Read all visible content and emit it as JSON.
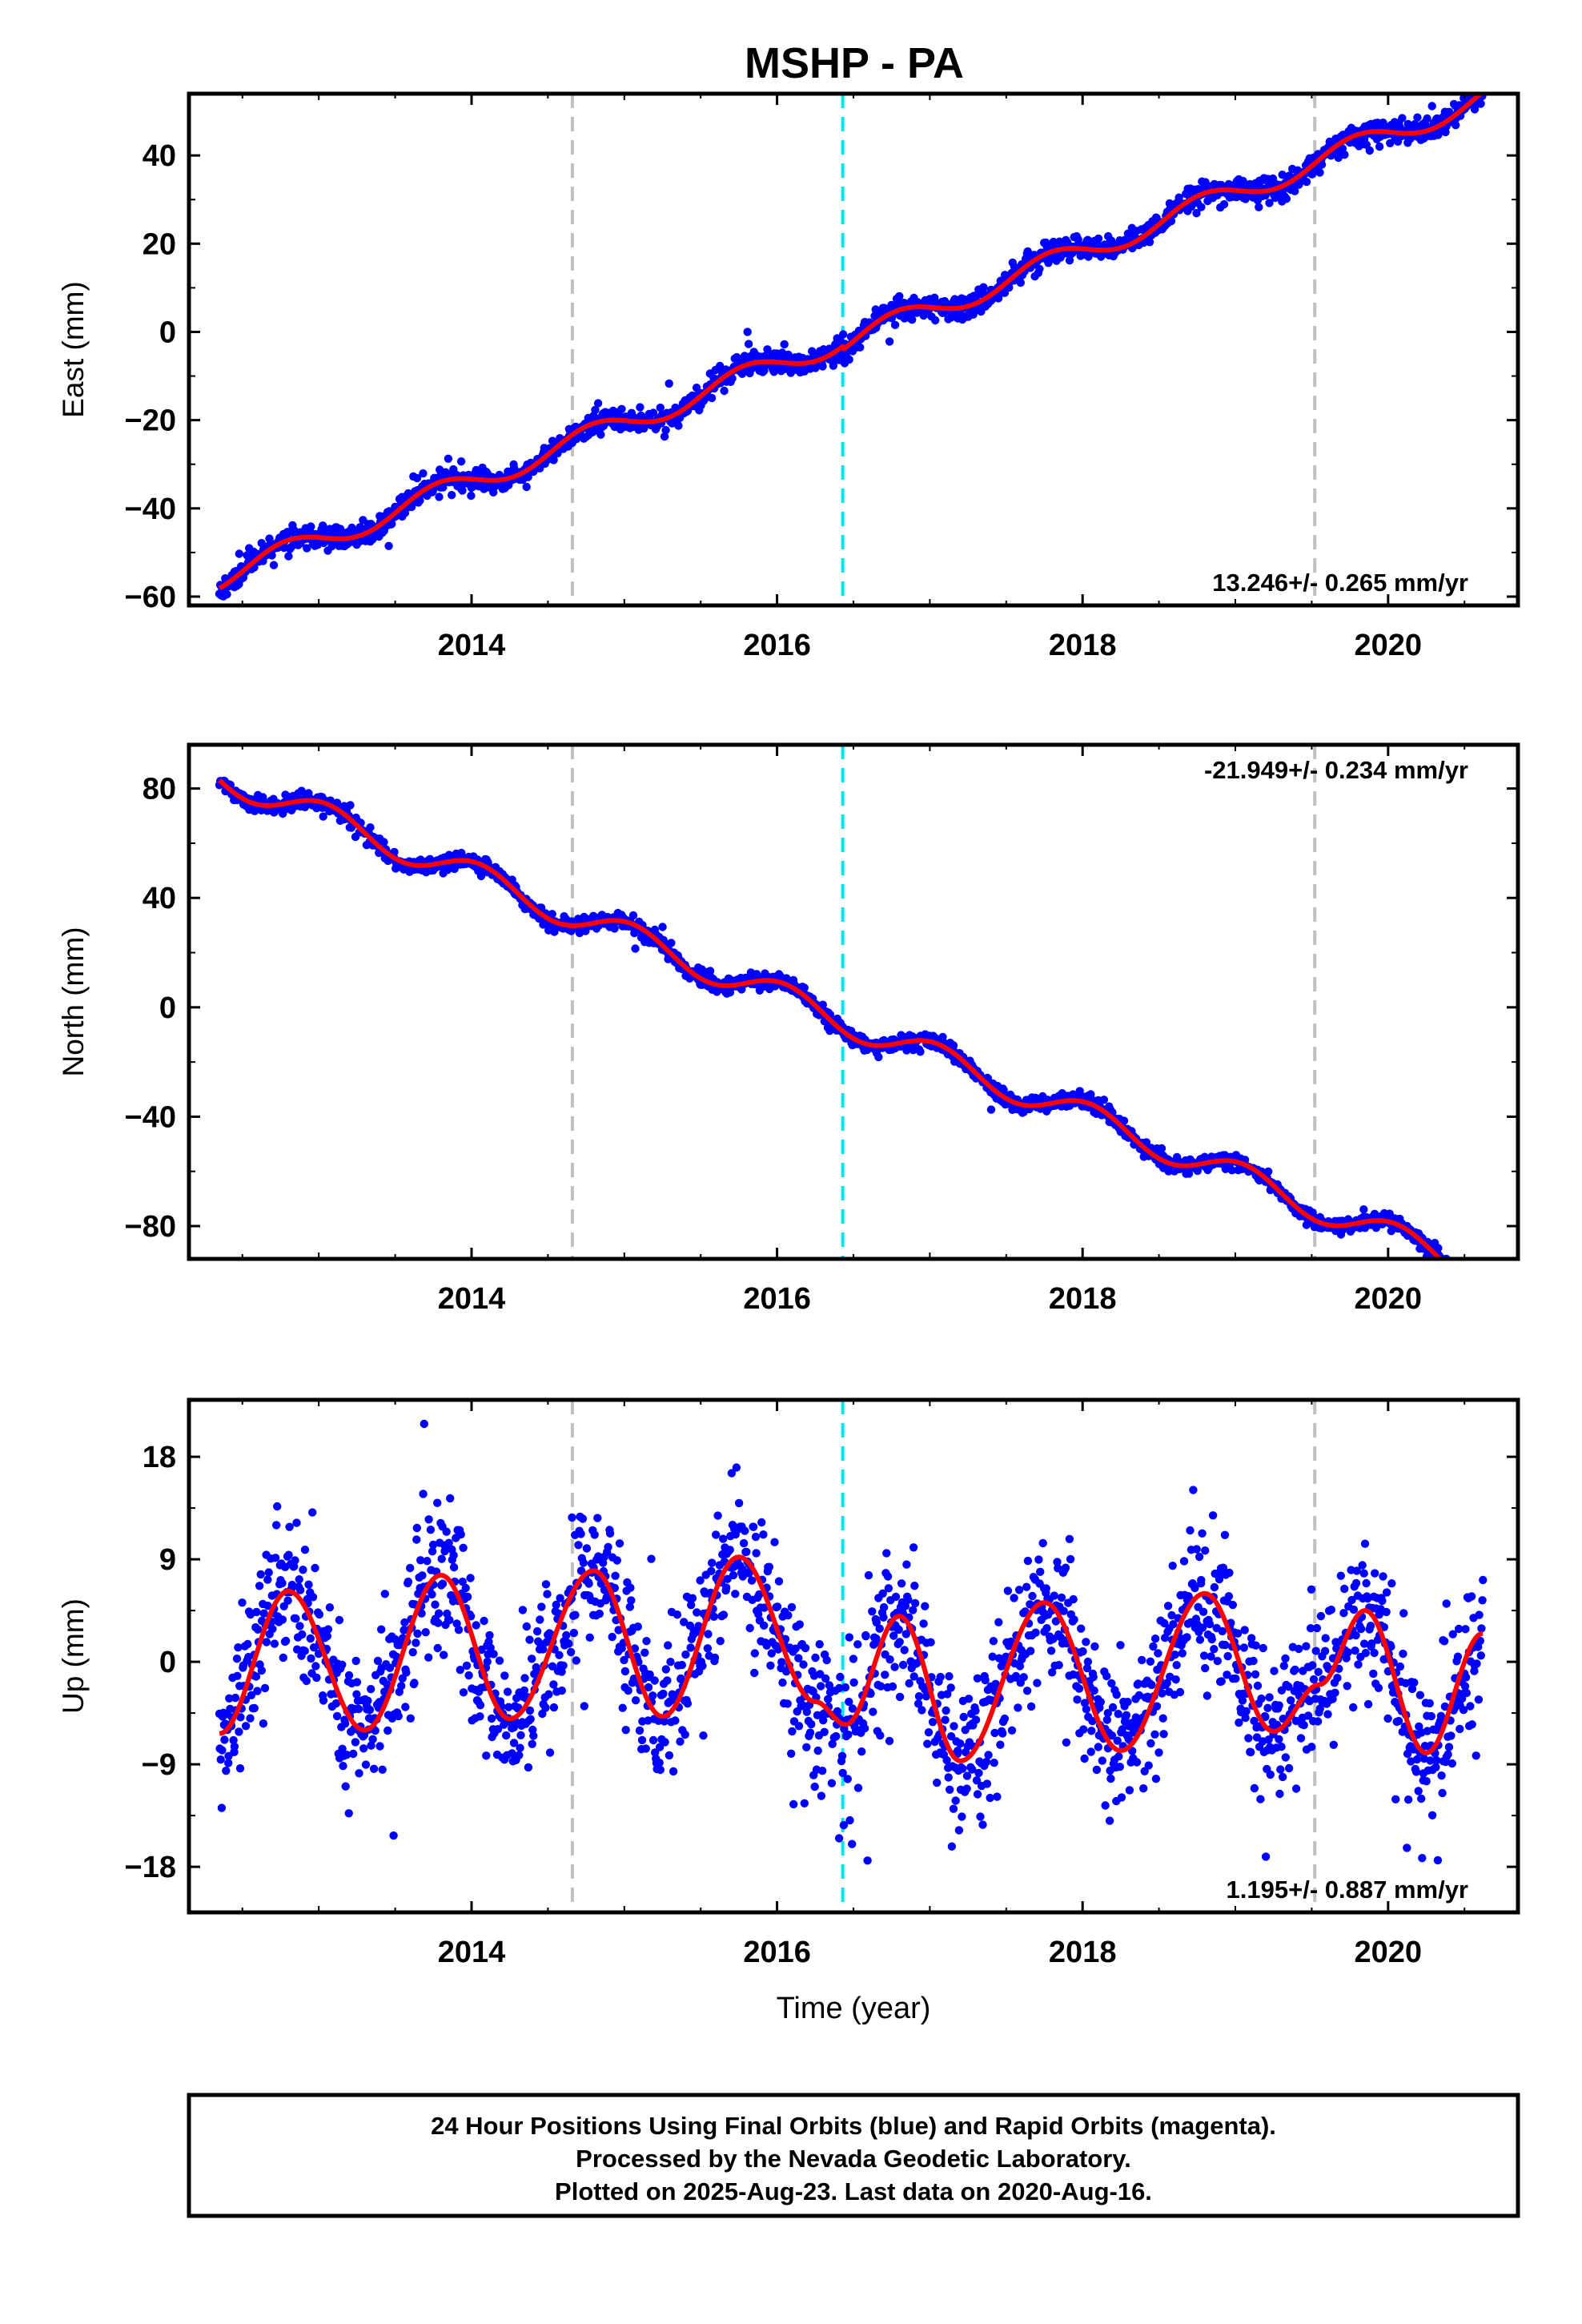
{
  "title": "MSHP - PA",
  "footer": {
    "lines": [
      "24 Hour Positions Using Final Orbits (blue) and Rapid Orbits (magenta).",
      "Processed by the Nevada Geodetic Laboratory.",
      "Plotted on 2025-Aug-23. Last data on 2020-Aug-16."
    ]
  },
  "colors": {
    "final_orbits": "#0000ff",
    "model_fit": "#ff0000",
    "event_gray": "#c0c0c0",
    "event_cyan": "#00e5f0"
  },
  "chart_data": [
    {
      "type": "scatter",
      "title": "MSHP - PA",
      "xlabel": "",
      "ylabel": "East (mm)",
      "xlim": [
        2012.15,
        2020.85
      ],
      "ylim": [
        -62,
        54
      ],
      "xticks": [
        2014,
        2016,
        2018,
        2020
      ],
      "yticks": [
        -60,
        -40,
        -20,
        0,
        20,
        40
      ],
      "ytick_labels": [
        "−60",
        "−40",
        "−20",
        "0",
        "20",
        "40"
      ],
      "rate_label": "13.246+/- 0.265 mm/yr",
      "rate_position": "bottom-right",
      "event_lines": [
        {
          "x": 2014.66,
          "style": "gray-dashed"
        },
        {
          "x": 2016.43,
          "style": "cyan-dashed"
        },
        {
          "x": 2019.52,
          "style": "gray-dashed"
        }
      ],
      "model": {
        "x0": 2012.35,
        "x1": 2020.62,
        "rate": 13.246,
        "intercept_at_2016": -7.4,
        "annual_amp": 2.6,
        "annual_phase": 2.93,
        "offsets": [
          {
            "x": 2016.43,
            "dy": -0.8
          }
        ],
        "nodes": [
          [
            2012.35,
            -58
          ],
          [
            2016.0,
            -6
          ],
          [
            2020.62,
            50
          ]
        ]
      },
      "scatter": {
        "count": 1900,
        "noise": 1.3,
        "spike_rate": 0.012,
        "spike_size": 4,
        "seed": 11
      },
      "series": [
        {
          "name": "Final Orbits (blue)"
        }
      ]
    },
    {
      "type": "scatter",
      "xlabel": "",
      "ylabel": "North (mm)",
      "xlim": [
        2012.15,
        2020.85
      ],
      "ylim": [
        -92,
        96
      ],
      "xticks": [
        2014,
        2016,
        2018,
        2020
      ],
      "yticks": [
        -80,
        -40,
        0,
        40,
        80
      ],
      "ytick_labels": [
        "−80",
        "−40",
        "0",
        "40",
        "80"
      ],
      "rate_label": "-21.949+/- 0.234 mm/yr",
      "rate_position": "top-right",
      "event_lines": [
        {
          "x": 2014.66,
          "style": "gray-dashed"
        },
        {
          "x": 2016.43,
          "style": "cyan-dashed"
        },
        {
          "x": 2019.52,
          "style": "gray-dashed"
        }
      ],
      "model": {
        "x0": 2012.35,
        "x1": 2020.62,
        "rate": -21.949,
        "intercept_at_2016": 4.5,
        "annual_amp": 5.2,
        "annual_phase": 1.25,
        "offsets": [],
        "nodes": [
          [
            2012.35,
            90
          ],
          [
            2016.4,
            3
          ],
          [
            2020.62,
            -86
          ]
        ]
      },
      "scatter": {
        "count": 1900,
        "noise": 1.4,
        "spike_rate": 0.006,
        "spike_size": 4,
        "seed": 23
      },
      "series": [
        {
          "name": "Final Orbits (blue)"
        }
      ]
    },
    {
      "type": "scatter",
      "xlabel": "Time (year)",
      "ylabel": "Up (mm)",
      "xlim": [
        2012.15,
        2020.85
      ],
      "ylim": [
        -22,
        23
      ],
      "xticks": [
        2014,
        2016,
        2018,
        2020
      ],
      "yticks": [
        -18,
        -9,
        0,
        9,
        18
      ],
      "ytick_labels": [
        "−18",
        "−9",
        "0",
        "9",
        "18"
      ],
      "rate_label": "1.195+/- 0.887 mm/yr",
      "rate_position": "bottom-right",
      "event_lines": [
        {
          "x": 2014.66,
          "style": "gray-dashed"
        },
        {
          "x": 2016.43,
          "style": "cyan-dashed"
        },
        {
          "x": 2019.52,
          "style": "gray-dashed"
        }
      ],
      "model": {
        "x0": 2012.35,
        "x1": 2020.62,
        "rate": 1.195,
        "intercept_at_2016": -1.2,
        "annual_amp": 6.5,
        "annual_phase": 4.5,
        "offsets": [
          {
            "x": 2016.43,
            "dy": -3
          },
          {
            "x": 2019.52,
            "dy": 2
          }
        ],
        "nodes": [
          [
            2012.35,
            -6.3
          ],
          [
            2012.8,
            6.2
          ],
          [
            2013.3,
            -6
          ],
          [
            2013.8,
            7.6
          ],
          [
            2014.25,
            -5
          ],
          [
            2014.8,
            8
          ],
          [
            2015.25,
            -4.8
          ],
          [
            2015.75,
            9.2
          ],
          [
            2016.25,
            -3.5
          ],
          [
            2016.45,
            -5.5
          ],
          [
            2016.8,
            4
          ],
          [
            2017.2,
            -8.7
          ],
          [
            2017.75,
            5.2
          ],
          [
            2018.25,
            -7.8
          ],
          [
            2018.8,
            6
          ],
          [
            2019.25,
            -6.1
          ],
          [
            2019.55,
            -2
          ],
          [
            2019.85,
            4.5
          ],
          [
            2020.25,
            -8
          ],
          [
            2020.62,
            2.5
          ]
        ]
      },
      "scatter": {
        "count": 1900,
        "noise": 3.2,
        "spike_rate": 0.02,
        "spike_size": 8,
        "seed": 37
      },
      "series": [
        {
          "name": "Final Orbits (blue)"
        }
      ]
    }
  ]
}
